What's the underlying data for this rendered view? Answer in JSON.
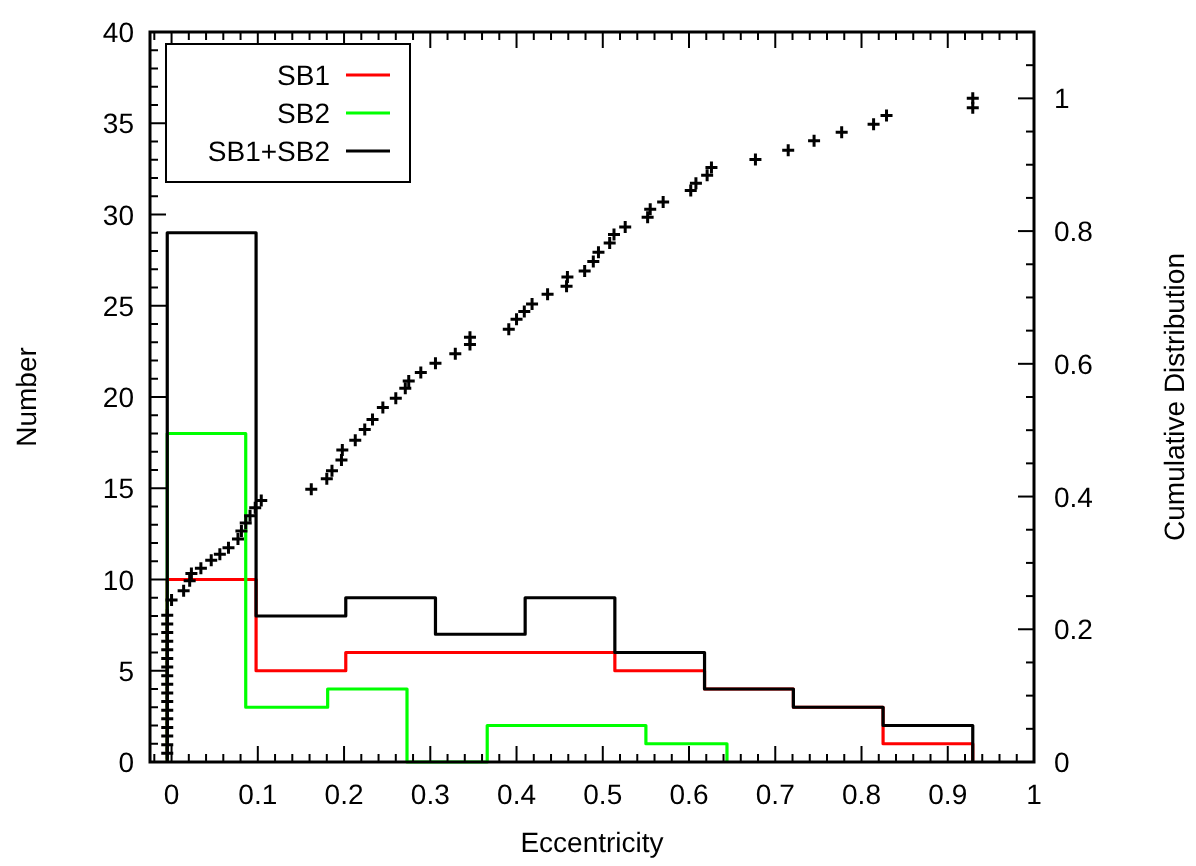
{
  "chart_data": {
    "type": "histogram",
    "xlabel": "Eccentricity",
    "ylabel": "Number",
    "y2label": "Cumulative Distribution",
    "xlim": [
      -0.025,
      1
    ],
    "ylim": [
      0,
      40
    ],
    "y2lim": [
      0,
      1.1
    ],
    "xticks": [
      {
        "value": -0.02,
        "label": null
      },
      0,
      {
        "value": 0.02,
        "label": null
      },
      {
        "value": 0.04,
        "label": null
      },
      {
        "value": 0.06,
        "label": null
      },
      {
        "value": 0.08,
        "label": null
      },
      0.1,
      {
        "value": 0.12,
        "label": null
      },
      {
        "value": 0.14,
        "label": null
      },
      {
        "value": 0.16,
        "label": null
      },
      {
        "value": 0.18,
        "label": null
      },
      0.2,
      {
        "value": 0.22,
        "label": null
      },
      {
        "value": 0.24,
        "label": null
      },
      {
        "value": 0.26,
        "label": null
      },
      {
        "value": 0.28,
        "label": null
      },
      0.3,
      {
        "value": 0.32,
        "label": null
      },
      {
        "value": 0.34,
        "label": null
      },
      {
        "value": 0.36,
        "label": null
      },
      {
        "value": 0.38,
        "label": null
      },
      0.4,
      {
        "value": 0.42,
        "label": null
      },
      {
        "value": 0.44,
        "label": null
      },
      {
        "value": 0.46,
        "label": null
      },
      {
        "value": 0.48,
        "label": null
      },
      0.5,
      {
        "value": 0.52,
        "label": null
      },
      {
        "value": 0.54,
        "label": null
      },
      {
        "value": 0.56,
        "label": null
      },
      {
        "value": 0.58,
        "label": null
      },
      0.6,
      {
        "value": 0.62,
        "label": null
      },
      {
        "value": 0.64,
        "label": null
      },
      {
        "value": 0.66,
        "label": null
      },
      {
        "value": 0.68,
        "label": null
      },
      0.7,
      {
        "value": 0.72,
        "label": null
      },
      {
        "value": 0.74,
        "label": null
      },
      {
        "value": 0.76,
        "label": null
      },
      {
        "value": 0.78,
        "label": null
      },
      0.8,
      {
        "value": 0.82,
        "label": null
      },
      {
        "value": 0.84,
        "label": null
      },
      {
        "value": 0.86,
        "label": null
      },
      {
        "value": 0.88,
        "label": null
      },
      0.9,
      {
        "value": 0.92,
        "label": null
      },
      {
        "value": 0.94,
        "label": null
      },
      {
        "value": 0.96,
        "label": null
      },
      {
        "value": 0.98,
        "label": null
      },
      1
    ],
    "yticks": [
      0,
      {
        "value": 1,
        "label": null
      },
      {
        "value": 2,
        "label": null
      },
      {
        "value": 3,
        "label": null
      },
      {
        "value": 4,
        "label": null
      },
      5,
      {
        "value": 6,
        "label": null
      },
      {
        "value": 7,
        "label": null
      },
      {
        "value": 8,
        "label": null
      },
      {
        "value": 9,
        "label": null
      },
      10,
      {
        "value": 11,
        "label": null
      },
      {
        "value": 12,
        "label": null
      },
      {
        "value": 13,
        "label": null
      },
      {
        "value": 14,
        "label": null
      },
      15,
      {
        "value": 16,
        "label": null
      },
      {
        "value": 17,
        "label": null
      },
      {
        "value": 18,
        "label": null
      },
      {
        "value": 19,
        "label": null
      },
      20,
      {
        "value": 21,
        "label": null
      },
      {
        "value": 22,
        "label": null
      },
      {
        "value": 23,
        "label": null
      },
      {
        "value": 24,
        "label": null
      },
      25,
      {
        "value": 26,
        "label": null
      },
      {
        "value": 27,
        "label": null
      },
      {
        "value": 28,
        "label": null
      },
      {
        "value": 29,
        "label": null
      },
      30,
      {
        "value": 31,
        "label": null
      },
      {
        "value": 32,
        "label": null
      },
      {
        "value": 33,
        "label": null
      },
      {
        "value": 34,
        "label": null
      },
      35,
      {
        "value": 36,
        "label": null
      },
      {
        "value": 37,
        "label": null
      },
      {
        "value": 38,
        "label": null
      },
      {
        "value": 39,
        "label": null
      },
      40
    ],
    "y2ticks": [
      0,
      {
        "value": 0.05,
        "label": null
      },
      {
        "value": 0.1,
        "label": null
      },
      {
        "value": 0.15,
        "label": null
      },
      0.2,
      {
        "value": 0.25,
        "label": null
      },
      {
        "value": 0.3,
        "label": null
      },
      {
        "value": 0.35,
        "label": null
      },
      0.4,
      {
        "value": 0.45,
        "label": null
      },
      {
        "value": 0.5,
        "label": null
      },
      {
        "value": 0.55,
        "label": null
      },
      0.6,
      {
        "value": 0.65,
        "label": null
      },
      {
        "value": 0.7,
        "label": null
      },
      {
        "value": 0.75,
        "label": null
      },
      0.8,
      {
        "value": 0.85,
        "label": null
      },
      {
        "value": 0.9,
        "label": null
      },
      {
        "value": 0.95,
        "label": null
      },
      1,
      {
        "value": 1.05,
        "label": null
      }
    ],
    "legend": "top left",
    "grid": false,
    "series": [
      {
        "name": "SB1",
        "color": "#ff0000",
        "bins": [
          -0.005,
          0.098,
          0.202,
          0.306,
          0.41,
          0.514,
          0.618,
          0.721,
          0.825,
          0.929
        ],
        "values": [
          10,
          5,
          6,
          6,
          6,
          5,
          4,
          3,
          1
        ]
      },
      {
        "name": "SB2",
        "color": "#00ff00",
        "bins": [
          -0.005,
          0.086,
          0.181,
          0.273,
          0.366,
          0.458,
          0.55,
          0.644
        ],
        "values": [
          18,
          3,
          4,
          0,
          2,
          2,
          1
        ]
      },
      {
        "name": "SB1+SB2",
        "color": "#000000",
        "bins": [
          -0.005,
          0.098,
          0.202,
          0.306,
          0.41,
          0.514,
          0.618,
          0.721,
          0.825,
          0.929
        ],
        "values": [
          29,
          8,
          9,
          7,
          9,
          6,
          4,
          3,
          2
        ]
      },
      {
        "type": "scatter",
        "axis": "y2",
        "marker": "cross",
        "color": "#000000",
        "x": [
          -0.005,
          -0.005,
          -0.005,
          -0.005,
          -0.005,
          -0.005,
          -0.005,
          -0.005,
          -0.005,
          -0.005,
          -0.005,
          -0.005,
          -0.005,
          -0.005,
          -0.005,
          -0.005,
          -0.005,
          0.0,
          0.014,
          0.021,
          0.023,
          0.034,
          0.046,
          0.056,
          0.066,
          0.077,
          0.081,
          0.086,
          0.091,
          0.097,
          0.104,
          0.162,
          0.18,
          0.186,
          0.197,
          0.198,
          0.213,
          0.224,
          0.233,
          0.245,
          0.26,
          0.271,
          0.275,
          0.289,
          0.306,
          0.329,
          0.346,
          0.346,
          0.391,
          0.4,
          0.409,
          0.418,
          0.436,
          0.458,
          0.459,
          0.479,
          0.489,
          0.495,
          0.508,
          0.513,
          0.526,
          0.552,
          0.555,
          0.57,
          0.602,
          0.608,
          0.621,
          0.626,
          0.677,
          0.715,
          0.745,
          0.777,
          0.814,
          0.829,
          0.929,
          0.929
        ],
        "values": [
          0.013,
          0.026,
          0.039,
          0.052,
          0.065,
          0.078,
          0.091,
          0.104,
          0.117,
          0.13,
          0.143,
          0.156,
          0.169,
          0.182,
          0.195,
          0.208,
          0.221,
          0.244,
          0.258,
          0.273,
          0.284,
          0.292,
          0.304,
          0.313,
          0.323,
          0.336,
          0.348,
          0.36,
          0.371,
          0.383,
          0.394,
          0.411,
          0.427,
          0.439,
          0.455,
          0.47,
          0.485,
          0.501,
          0.516,
          0.534,
          0.548,
          0.563,
          0.574,
          0.587,
          0.601,
          0.615,
          0.629,
          0.64,
          0.652,
          0.667,
          0.679,
          0.69,
          0.705,
          0.717,
          0.731,
          0.74,
          0.754,
          0.768,
          0.782,
          0.795,
          0.806,
          0.821,
          0.833,
          0.844,
          0.861,
          0.872,
          0.884,
          0.896,
          0.908,
          0.922,
          0.936,
          0.949,
          0.961,
          0.974,
          0.986,
          1.0
        ]
      }
    ]
  }
}
